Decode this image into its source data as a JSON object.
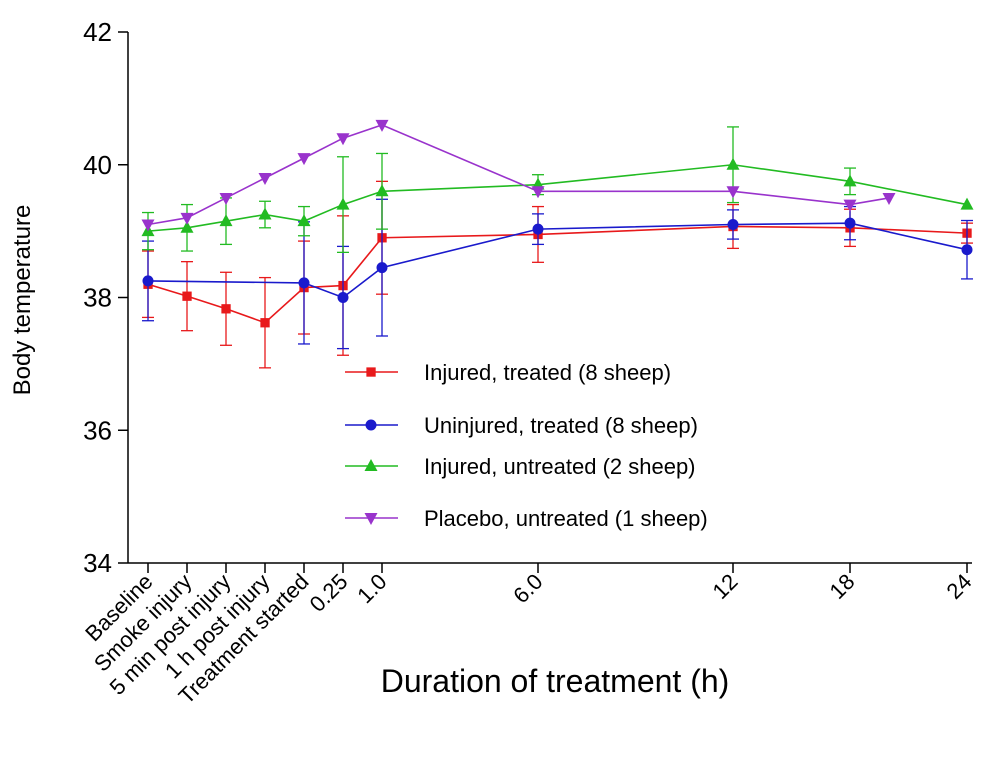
{
  "chart_data": {
    "type": "line",
    "xlabel": "Duration of treatment (h)",
    "ylabel": "Body temperature",
    "ylim": [
      34,
      42
    ],
    "yticks": [
      "34",
      "36",
      "38",
      "40",
      "42"
    ],
    "categories": [
      "Baseline",
      "Smoke injury",
      "5 min post injury",
      "1 h post injury",
      "Treatment started",
      "0.25",
      "1.0",
      "6.0",
      "12",
      "18",
      "24"
    ],
    "grid": false,
    "legend_position": "center",
    "series": [
      {
        "name": "Injured, treated (8 sheep)",
        "color": "#e8191b",
        "marker": "square",
        "points": [
          {
            "x": "Baseline",
            "y": 38.2,
            "err": 0.5
          },
          {
            "x": "Smoke injury",
            "y": 38.02,
            "err": 0.52
          },
          {
            "x": "5 min post injury",
            "y": 37.83,
            "err": 0.55
          },
          {
            "x": "1 h post injury",
            "y": 37.62,
            "err": 0.68
          },
          {
            "x": "Treatment started",
            "y": 38.15,
            "err": 0.7
          },
          {
            "x": "0.25",
            "y": 38.18,
            "err": 1.05
          },
          {
            "x": "1.0",
            "y": 38.9,
            "err": 0.85
          },
          {
            "x": "6.0",
            "y": 38.95,
            "err": 0.42
          },
          {
            "x": "12",
            "y": 39.07,
            "err": 0.33
          },
          {
            "x": "18",
            "y": 39.05,
            "err": 0.28
          },
          {
            "x": "24",
            "y": 38.97,
            "err": 0.15
          }
        ]
      },
      {
        "name": "Uninjured, treated (8 sheep)",
        "color": "#1a1acc",
        "marker": "circle",
        "points": [
          {
            "x": "Baseline",
            "y": 38.25,
            "err": 0.6
          },
          {
            "x": "Treatment started",
            "y": 38.22,
            "err": 0.92
          },
          {
            "x": "0.25",
            "y": 38.0,
            "err": 0.77
          },
          {
            "x": "1.0",
            "y": 38.45,
            "err": 1.03
          },
          {
            "x": "6.0",
            "y": 39.03,
            "err": 0.23
          },
          {
            "x": "12",
            "y": 39.1,
            "err": 0.22
          },
          {
            "x": "18",
            "y": 39.12,
            "err": 0.25
          },
          {
            "x": "24",
            "y": 38.72,
            "err": 0.44
          }
        ]
      },
      {
        "name": "Injured, untreated (2 sheep)",
        "color": "#22bb22",
        "marker": "triangle-up",
        "points": [
          {
            "x": "Baseline",
            "y": 39.0,
            "err": 0.28
          },
          {
            "x": "Smoke injury",
            "y": 39.05,
            "err": 0.35
          },
          {
            "x": "5 min post injury",
            "y": 39.15,
            "err": 0.35
          },
          {
            "x": "1 h post injury",
            "y": 39.25,
            "err": 0.2
          },
          {
            "x": "Treatment started",
            "y": 39.15,
            "err": 0.22
          },
          {
            "x": "0.25",
            "y": 39.4,
            "err": 0.72
          },
          {
            "x": "1.0",
            "y": 39.6,
            "err": 0.57
          },
          {
            "x": "6.0",
            "y": 39.7,
            "err": 0.15
          },
          {
            "x": "12",
            "y": 40.0,
            "err": 0.57
          },
          {
            "x": "18",
            "y": 39.75,
            "err": 0.2
          },
          {
            "x": "24",
            "y": 39.4,
            "err": 0.0
          }
        ]
      },
      {
        "name": "Placebo, untreated (1 sheep)",
        "color": "#9933cc",
        "marker": "triangle-down",
        "points": [
          {
            "x": "Baseline",
            "y": 39.1
          },
          {
            "x": "Smoke injury",
            "y": 39.2
          },
          {
            "x": "5 min post injury",
            "y": 39.5
          },
          {
            "x": "1 h post injury",
            "y": 39.8
          },
          {
            "x": "Treatment started",
            "y": 40.1
          },
          {
            "x": "0.25",
            "y": 40.4
          },
          {
            "x": "1.0",
            "y": 40.6
          },
          {
            "x": "6.0",
            "y": 39.6
          },
          {
            "x": "12",
            "y": 39.6
          },
          {
            "x": "18",
            "y": 39.4
          },
          {
            "x": "21",
            "y": 39.5
          }
        ]
      }
    ]
  }
}
